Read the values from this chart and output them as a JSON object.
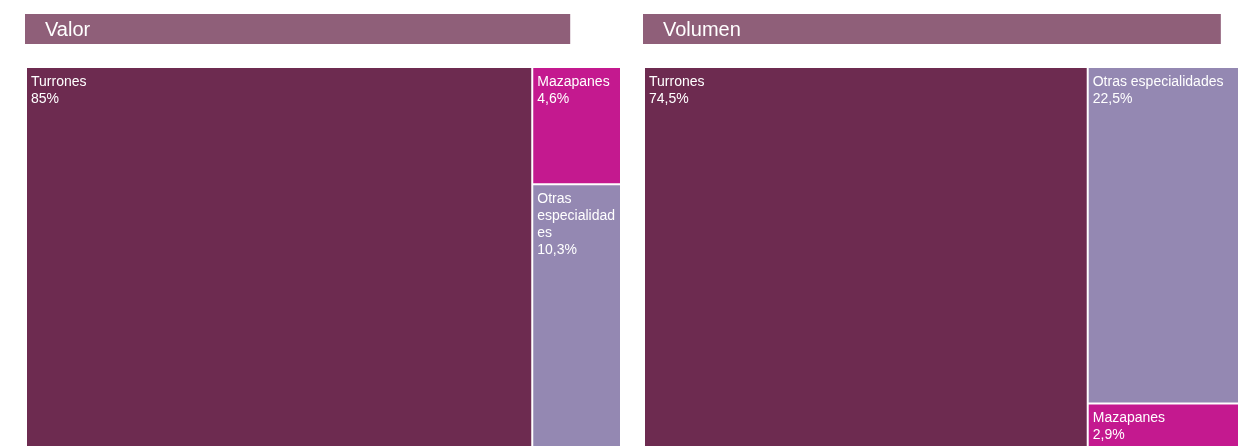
{
  "chart_data": [
    {
      "type": "other",
      "title": "Valor",
      "categories": [
        "Turrones",
        "Mazapanes",
        "Otras especialidades"
      ],
      "values": [
        85,
        4.6,
        10.3
      ],
      "value_labels": [
        "85%",
        "4,6%",
        "10,3%"
      ],
      "colors": [
        "#6d2b50",
        "#c4198f",
        "#9488b2"
      ]
    },
    {
      "type": "other",
      "title": "Volumen",
      "categories": [
        "Turrones",
        "Otras especialidades",
        "Mazapanes"
      ],
      "values": [
        74.5,
        22.5,
        2.9
      ],
      "value_labels": [
        "74,5%",
        "22,5%",
        "2,9%"
      ],
      "colors": [
        "#6d2b50",
        "#9488b2",
        "#c4198f"
      ]
    }
  ]
}
